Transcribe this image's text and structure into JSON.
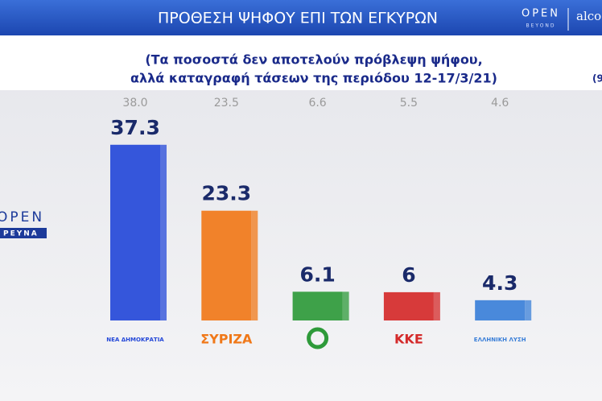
{
  "chart_data": {
    "type": "bar",
    "title": "ΠΡΟΘΕΣΗ ΨΗΦΟΥ ΕΠΙ ΤΩΝ ΕΓΚΥΡΩΝ",
    "subtitle": [
      "(Τα ποσοστά δεν αποτελούν πρόβλεψη ψήφου,",
      "αλλά καταγραφή τάσεων της περιόδου 12-17/3/21)"
    ],
    "side_note": "(9",
    "brand": {
      "open": "OPEN",
      "beyond": "BEYOND",
      "alco": "alco",
      "side_open": "OPEN",
      "side_research": "ΡΕΥΝΑ"
    },
    "categories": [
      "ΝΕΑ ΔΗΜΟΚΡΑΤΙΑ",
      "ΣΥΡΙΖΑ",
      null,
      "ΚΚΕ",
      "ΕΛΛΗΝΙΚΗ ΛΥΣΗ"
    ],
    "values": [
      37.3,
      23.3,
      6.1,
      6,
      4.3
    ],
    "colors": [
      "#2448d8",
      "#f07818",
      "#2e9a3a",
      "#d42a2a",
      "#3a7fd8"
    ],
    "previous_values": [
      38.0,
      23.5,
      6.6,
      5.5,
      4.6
    ],
    "previous_value_labels": [
      "38.0",
      "23.5",
      "6.6",
      "5.5",
      "4.6"
    ]
  }
}
